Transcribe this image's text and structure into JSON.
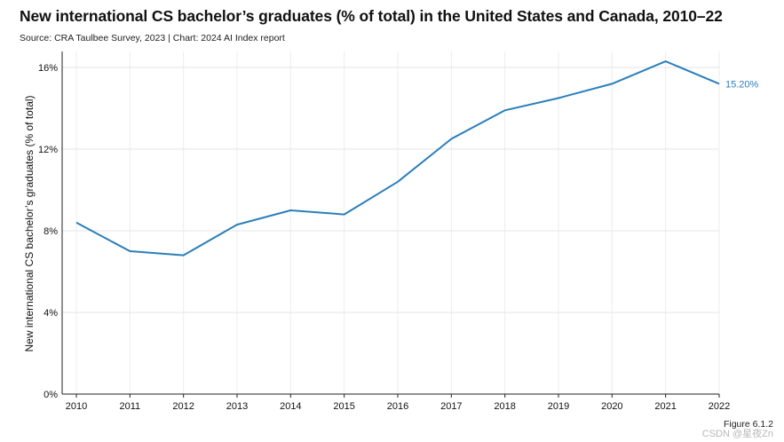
{
  "title": "New international CS bachelor’s graduates (% of total) in the United States and Canada, 2010–22",
  "source": "Source: CRA Taulbee Survey, 2023 | Chart: 2024 AI Index report",
  "figure_label": "Figure 6.1.2",
  "watermark": "CSDN @星夜Zn",
  "chart_data": {
    "type": "line",
    "title": "New international CS bachelor’s graduates (% of total) in the United States and Canada, 2010–22",
    "xlabel": "",
    "ylabel": "New international CS bachelor’s graduates (% of total)",
    "x": [
      2010,
      2011,
      2012,
      2013,
      2014,
      2015,
      2016,
      2017,
      2018,
      2019,
      2020,
      2021,
      2022
    ],
    "ylim": [
      0,
      16
    ],
    "yticks": [
      0,
      4,
      8,
      12,
      16
    ],
    "ytick_labels": [
      "0%",
      "4%",
      "8%",
      "12%",
      "16%"
    ],
    "grid": true,
    "series": [
      {
        "values": [
          8.4,
          7.0,
          6.8,
          8.3,
          9.0,
          8.8,
          10.4,
          12.5,
          13.9,
          14.5,
          15.2,
          16.3,
          15.2
        ],
        "color": "#2a7fba",
        "end_label": "15.20%"
      }
    ]
  }
}
